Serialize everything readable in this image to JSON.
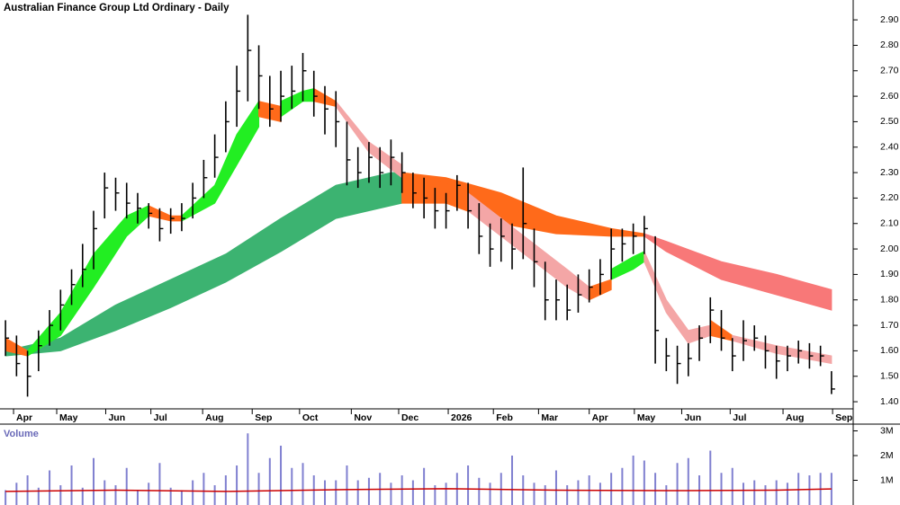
{
  "chart_data": [
    {
      "type": "ohlc",
      "title": "Australian Finance Group Ltd Ordinary - Daily",
      "color": "#000000",
      "xlim": [
        -0.5,
        75.5
      ],
      "ylim": [
        1.372,
        2.978
      ],
      "xticks": [
        {
          "value": 0.73,
          "label": "Apr"
        },
        {
          "value": 4.65,
          "label": "May"
        },
        {
          "value": 9.1,
          "label": "Jun"
        },
        {
          "value": 13.2,
          "label": "Jul"
        },
        {
          "value": 17.9,
          "label": "Aug"
        },
        {
          "value": 22.4,
          "label": "Sep"
        },
        {
          "value": 26.7,
          "label": "Oct"
        },
        {
          "value": 31.4,
          "label": "Nov"
        },
        {
          "value": 35.7,
          "label": "Dec"
        },
        {
          "value": 40.2,
          "label": "2026"
        },
        {
          "value": 44.3,
          "label": "Feb"
        },
        {
          "value": 48.4,
          "label": "Mar"
        },
        {
          "value": 53.0,
          "label": "Apr"
        },
        {
          "value": 57.1,
          "label": "May"
        },
        {
          "value": 61.4,
          "label": "Jun"
        },
        {
          "value": 65.8,
          "label": "Jul"
        },
        {
          "value": 70.6,
          "label": "Aug"
        },
        {
          "value": 75.1,
          "label": "Sep"
        }
      ],
      "yticks": [
        {
          "value": 1.4,
          "label": "1.40"
        },
        {
          "value": 1.5,
          "label": "1.50"
        },
        {
          "value": 1.6,
          "label": "1.60"
        },
        {
          "value": 1.7,
          "label": "1.70"
        },
        {
          "value": 1.8,
          "label": "1.80"
        },
        {
          "value": 1.9,
          "label": "1.90"
        },
        {
          "value": 2.0,
          "label": "2.00"
        },
        {
          "value": 2.1,
          "label": "2.10"
        },
        {
          "value": 2.2,
          "label": "2.20"
        },
        {
          "value": 2.3,
          "label": "2.30"
        },
        {
          "value": 2.4,
          "label": "2.40"
        },
        {
          "value": 2.5,
          "label": "2.50"
        },
        {
          "value": 2.6,
          "label": "2.60"
        },
        {
          "value": 2.7,
          "label": "2.70"
        },
        {
          "value": 2.8,
          "label": "2.80"
        },
        {
          "value": 2.9,
          "label": "2.90"
        }
      ],
      "ribbons": [
        {
          "color": "#3cb371",
          "x": [
            0,
            5,
            10,
            15,
            20,
            25,
            30,
            35,
            36
          ],
          "upper": [
            1.6,
            1.65,
            1.78,
            1.88,
            1.98,
            2.12,
            2.25,
            2.3,
            2.3
          ],
          "lower": [
            1.58,
            1.6,
            1.68,
            1.77,
            1.87,
            1.99,
            2.12,
            2.17,
            2.18
          ]
        },
        {
          "color": "#ff6a1a",
          "x": [
            36,
            40,
            45,
            50,
            55,
            58
          ],
          "upper": [
            2.3,
            2.28,
            2.22,
            2.13,
            2.08,
            2.06
          ],
          "lower": [
            2.18,
            2.18,
            2.1,
            2.06,
            2.05,
            2.05
          ]
        },
        {
          "color": "#f87878",
          "x": [
            58,
            60,
            65,
            70,
            75
          ],
          "upper": [
            2.06,
            2.03,
            1.95,
            1.9,
            1.84
          ],
          "lower": [
            2.05,
            1.99,
            1.88,
            1.82,
            1.76
          ]
        },
        {
          "color": "#ff6a1a",
          "x": [
            0,
            2
          ],
          "upper": [
            1.65,
            1.6
          ],
          "lower": [
            1.6,
            1.58
          ]
        },
        {
          "color": "#22ee22",
          "x": [
            2,
            5,
            8,
            11,
            13
          ],
          "upper": [
            1.6,
            1.75,
            1.98,
            2.13,
            2.17
          ],
          "lower": [
            1.58,
            1.66,
            1.85,
            2.05,
            2.13
          ]
        },
        {
          "color": "#ff6a1a",
          "x": [
            13,
            15,
            16
          ],
          "upper": [
            2.17,
            2.13,
            2.13
          ],
          "lower": [
            2.13,
            2.11,
            2.11
          ]
        },
        {
          "color": "#22ee22",
          "x": [
            16,
            19,
            21,
            23
          ],
          "upper": [
            2.13,
            2.25,
            2.45,
            2.58
          ],
          "lower": [
            2.11,
            2.18,
            2.33,
            2.48
          ]
        },
        {
          "color": "#ff6a1a",
          "x": [
            23,
            25
          ],
          "upper": [
            2.58,
            2.56
          ],
          "lower": [
            2.52,
            2.5
          ]
        },
        {
          "color": "#22ee22",
          "x": [
            25,
            27,
            28
          ],
          "upper": [
            2.58,
            2.62,
            2.63
          ],
          "lower": [
            2.52,
            2.58,
            2.58
          ]
        },
        {
          "color": "#ff6a1a",
          "x": [
            28,
            30
          ],
          "upper": [
            2.63,
            2.58
          ],
          "lower": [
            2.58,
            2.56
          ]
        },
        {
          "color": "#f4a6a6",
          "x": [
            30,
            33,
            36
          ],
          "upper": [
            2.58,
            2.42,
            2.33
          ],
          "lower": [
            2.56,
            2.38,
            2.28
          ]
        },
        {
          "color": "#ff6a1a",
          "x": [
            36,
            40,
            42
          ],
          "upper": [
            2.3,
            2.26,
            2.22
          ],
          "lower": [
            2.22,
            2.18,
            2.15
          ]
        },
        {
          "color": "#f4a6a6",
          "x": [
            42,
            45,
            48,
            51,
            53
          ],
          "upper": [
            2.22,
            2.12,
            2.02,
            1.92,
            1.85
          ],
          "lower": [
            2.15,
            2.05,
            1.95,
            1.85,
            1.8
          ]
        },
        {
          "color": "#ff6a1a",
          "x": [
            53,
            55
          ],
          "upper": [
            1.85,
            1.88
          ],
          "lower": [
            1.8,
            1.84
          ]
        },
        {
          "color": "#22ee22",
          "x": [
            55,
            57,
            58
          ],
          "upper": [
            1.92,
            1.97,
            1.99
          ],
          "lower": [
            1.88,
            1.92,
            1.95
          ]
        },
        {
          "color": "#f4a6a6",
          "x": [
            58,
            60,
            62,
            64
          ],
          "upper": [
            1.99,
            1.8,
            1.68,
            1.7
          ],
          "lower": [
            1.95,
            1.75,
            1.63,
            1.66
          ]
        },
        {
          "color": "#ff6a1a",
          "x": [
            64,
            66
          ],
          "upper": [
            1.72,
            1.66
          ],
          "lower": [
            1.66,
            1.64
          ]
        },
        {
          "color": "#f4a6a6",
          "x": [
            66,
            70,
            75
          ],
          "upper": [
            1.66,
            1.62,
            1.58
          ],
          "lower": [
            1.64,
            1.59,
            1.55
          ]
        }
      ],
      "high": [
        1.72,
        1.66,
        1.6,
        1.68,
        1.76,
        1.84,
        1.92,
        2.02,
        2.15,
        2.3,
        2.28,
        2.26,
        2.22,
        2.18,
        2.16,
        2.16,
        2.18,
        2.26,
        2.35,
        2.45,
        2.58,
        2.72,
        2.92,
        2.8,
        2.68,
        2.7,
        2.72,
        2.77,
        2.7,
        2.64,
        2.62,
        2.5,
        2.4,
        2.42,
        2.4,
        2.43,
        2.38,
        2.3,
        2.28,
        2.24,
        2.22,
        2.29,
        2.26,
        2.18,
        2.1,
        2.12,
        2.1,
        2.32,
        2.08,
        1.95,
        1.88,
        1.86,
        1.9,
        1.92,
        1.96,
        2.08,
        2.08,
        2.1,
        2.13,
        2.05,
        1.65,
        1.62,
        1.63,
        1.7,
        1.81,
        1.76,
        1.65,
        1.72,
        1.7,
        1.66,
        1.62,
        1.62,
        1.64,
        1.63,
        1.62,
        1.52
      ],
      "low": [
        1.58,
        1.5,
        1.42,
        1.52,
        1.62,
        1.68,
        1.78,
        1.85,
        1.92,
        2.12,
        2.15,
        2.12,
        2.1,
        2.08,
        2.03,
        2.06,
        2.07,
        2.12,
        2.2,
        2.28,
        2.38,
        2.48,
        2.58,
        2.55,
        2.48,
        2.5,
        2.55,
        2.58,
        2.52,
        2.45,
        2.4,
        2.25,
        2.24,
        2.26,
        2.24,
        2.25,
        2.22,
        2.16,
        2.12,
        2.08,
        2.08,
        2.15,
        2.08,
        1.98,
        1.93,
        1.95,
        1.92,
        1.96,
        1.85,
        1.72,
        1.72,
        1.72,
        1.75,
        1.79,
        1.82,
        1.88,
        1.95,
        1.98,
        1.98,
        1.55,
        1.52,
        1.47,
        1.5,
        1.56,
        1.63,
        1.6,
        1.52,
        1.56,
        1.6,
        1.53,
        1.49,
        1.52,
        1.55,
        1.53,
        1.54,
        1.43
      ],
      "close": [
        1.65,
        1.55,
        1.5,
        1.62,
        1.7,
        1.78,
        1.86,
        1.92,
        2.08,
        2.24,
        2.22,
        2.18,
        2.16,
        2.14,
        2.08,
        2.12,
        2.12,
        2.2,
        2.28,
        2.36,
        2.5,
        2.62,
        2.78,
        2.68,
        2.55,
        2.6,
        2.62,
        2.7,
        2.6,
        2.55,
        2.5,
        2.35,
        2.3,
        2.36,
        2.3,
        2.36,
        2.3,
        2.22,
        2.2,
        2.15,
        2.15,
        2.25,
        2.15,
        2.05,
        2.0,
        2.05,
        2.0,
        2.1,
        1.95,
        1.8,
        1.8,
        1.76,
        1.82,
        1.85,
        1.9,
        2.0,
        2.02,
        2.05,
        2.08,
        1.68,
        1.58,
        1.55,
        1.57,
        1.65,
        1.76,
        1.65,
        1.58,
        1.64,
        1.65,
        1.6,
        1.56,
        1.58,
        1.6,
        1.58,
        1.58,
        1.45
      ]
    },
    {
      "type": "bar",
      "title": "Volume",
      "color": "#8080d0",
      "xlim": [
        -0.5,
        75.5
      ],
      "ylim": [
        0,
        3.2
      ],
      "yticks": [
        {
          "value": 1,
          "label": "1M"
        },
        {
          "value": 2,
          "label": "2M"
        },
        {
          "value": 3,
          "label": "3M"
        }
      ],
      "values": [
        0.6,
        0.9,
        1.2,
        0.7,
        1.4,
        0.8,
        1.6,
        0.7,
        1.9,
        1.0,
        0.8,
        1.5,
        0.6,
        0.9,
        1.7,
        0.7,
        0.6,
        1.0,
        1.3,
        0.8,
        1.2,
        1.6,
        2.9,
        1.3,
        1.9,
        2.4,
        1.5,
        1.7,
        1.2,
        1.0,
        1.0,
        1.6,
        1.0,
        1.1,
        1.3,
        0.9,
        1.2,
        1.0,
        1.5,
        0.8,
        0.9,
        1.3,
        1.6,
        1.1,
        0.9,
        1.3,
        2.0,
        1.2,
        0.9,
        0.8,
        1.4,
        0.8,
        1.0,
        1.2,
        0.9,
        1.3,
        1.5,
        2.0,
        1.8,
        1.3,
        0.8,
        1.7,
        1.9,
        1.2,
        2.2,
        1.3,
        1.5,
        0.9,
        1.0,
        0.8,
        1.0,
        0.9,
        1.3,
        1.2,
        1.3,
        1.3
      ],
      "average": {
        "color": "#cc0000",
        "x": [
          0,
          10,
          20,
          30,
          40,
          50,
          60,
          70,
          75
        ],
        "values": [
          0.55,
          0.6,
          0.55,
          0.62,
          0.66,
          0.6,
          0.58,
          0.6,
          0.65
        ]
      }
    }
  ]
}
